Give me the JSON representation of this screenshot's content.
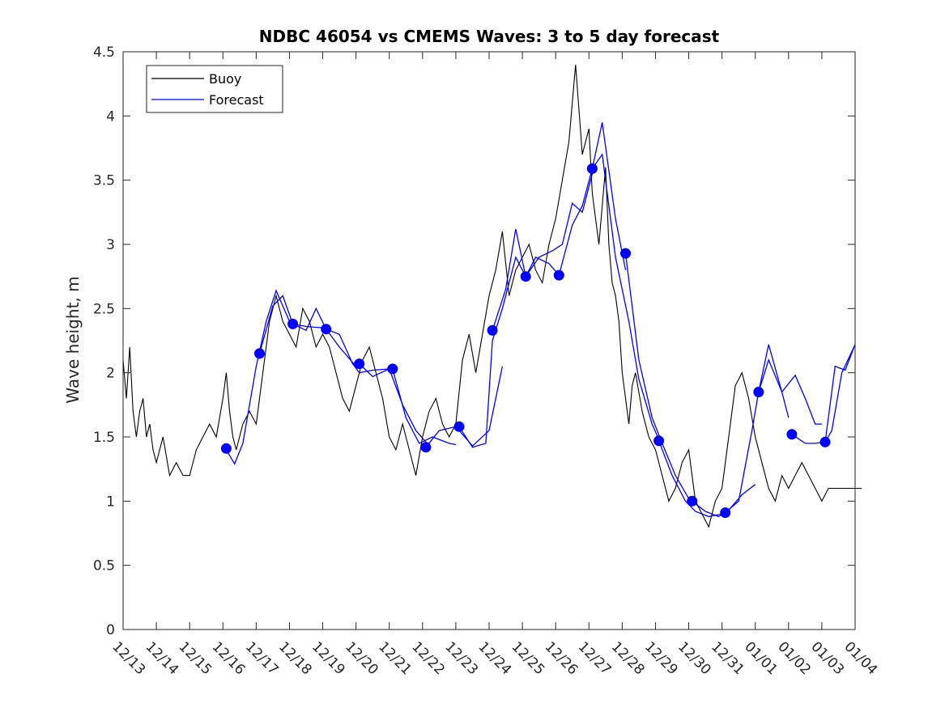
{
  "chart_data": {
    "type": "line",
    "title": "NDBC 46054 vs CMEMS Waves: 3 to 5 day forecast",
    "xlabel": "",
    "ylabel": "Wave height, m",
    "xlim": [
      "12/13",
      "01/04"
    ],
    "ylim": [
      0,
      4.5
    ],
    "x_tick_labels": [
      "12/13",
      "12/14",
      "12/15",
      "12/16",
      "12/17",
      "12/18",
      "12/19",
      "12/20",
      "12/21",
      "12/22",
      "12/23",
      "12/24",
      "12/25",
      "12/26",
      "12/27",
      "12/28",
      "12/29",
      "12/30",
      "12/31",
      "01/01",
      "01/02",
      "01/03",
      "01/04"
    ],
    "y_tick_labels": [
      "0",
      "0.5",
      "1",
      "1.5",
      "2",
      "2.5",
      "3",
      "3.5",
      "4",
      "4.5"
    ],
    "grid": false,
    "legend_position": "top-left",
    "series": [
      {
        "name": "Buoy",
        "color": "#000000",
        "style": "line",
        "x_days_from_1213": [
          0.0,
          0.1,
          0.2,
          0.3,
          0.4,
          0.5,
          0.6,
          0.7,
          0.8,
          0.9,
          1.0,
          1.2,
          1.4,
          1.6,
          1.8,
          2.0,
          2.2,
          2.4,
          2.6,
          2.8,
          3.0,
          3.1,
          3.2,
          3.3,
          3.4,
          3.5,
          3.6,
          3.8,
          4.0,
          4.2,
          4.4,
          4.6,
          4.8,
          5.0,
          5.2,
          5.4,
          5.6,
          5.8,
          6.0,
          6.2,
          6.4,
          6.6,
          6.8,
          7.0,
          7.2,
          7.4,
          7.6,
          7.8,
          8.0,
          8.2,
          8.4,
          8.6,
          8.8,
          9.0,
          9.2,
          9.4,
          9.6,
          9.8,
          10.0,
          10.2,
          10.4,
          10.6,
          10.8,
          11.0,
          11.2,
          11.4,
          11.6,
          11.8,
          12.0,
          12.2,
          12.4,
          12.6,
          12.8,
          13.0,
          13.2,
          13.4,
          13.6,
          13.8,
          14.0,
          14.1,
          14.2,
          14.3,
          14.4,
          14.5,
          14.6,
          14.7,
          14.8,
          14.9,
          15.0,
          15.1,
          15.2,
          15.3,
          15.4,
          15.6,
          15.8,
          16.0,
          16.2,
          16.4,
          16.6,
          16.8,
          17.0,
          17.2,
          17.4,
          17.6,
          17.8,
          18.0,
          18.2,
          18.4,
          18.6,
          18.8,
          19.0,
          19.2,
          19.4,
          19.6,
          19.8,
          20.0,
          20.2,
          20.4,
          20.6,
          20.8,
          21.0,
          21.2,
          21.4,
          21.6,
          21.8,
          22.0,
          22.2
        ],
        "values": [
          2.1,
          1.8,
          2.2,
          1.7,
          1.5,
          1.7,
          1.8,
          1.5,
          1.6,
          1.4,
          1.3,
          1.5,
          1.2,
          1.3,
          1.2,
          1.2,
          1.4,
          1.5,
          1.6,
          1.5,
          1.8,
          2.0,
          1.7,
          1.5,
          1.4,
          1.5,
          1.6,
          1.7,
          1.6,
          2.0,
          2.4,
          2.6,
          2.4,
          2.3,
          2.2,
          2.5,
          2.4,
          2.2,
          2.3,
          2.2,
          2.0,
          1.8,
          1.7,
          1.9,
          2.1,
          2.2,
          2.0,
          1.8,
          1.5,
          1.4,
          1.6,
          1.4,
          1.2,
          1.5,
          1.7,
          1.8,
          1.6,
          1.5,
          1.6,
          2.1,
          2.3,
          2.0,
          2.3,
          2.6,
          2.8,
          3.1,
          2.6,
          2.8,
          2.9,
          3.0,
          2.8,
          2.7,
          3.0,
          3.2,
          3.5,
          3.8,
          4.4,
          3.7,
          3.9,
          3.4,
          3.2,
          3.0,
          3.3,
          3.6,
          3.0,
          2.7,
          2.6,
          2.4,
          2.0,
          1.8,
          1.6,
          1.9,
          2.0,
          1.7,
          1.5,
          1.4,
          1.2,
          1.0,
          1.1,
          1.3,
          1.4,
          1.0,
          0.9,
          0.8,
          1.0,
          1.1,
          1.5,
          1.9,
          2.0,
          1.8,
          1.5,
          1.3,
          1.1,
          1.0,
          1.2,
          1.1,
          1.2,
          1.3,
          1.2,
          1.1,
          1.0,
          1.1,
          1.1,
          1.1,
          1.1,
          1.1,
          1.1
        ]
      },
      {
        "name": "Forecast",
        "color": "#0000ff",
        "style": "line+markers",
        "segments": [
          {
            "x": [
              3.1,
              3.35,
              3.6,
              4.0,
              4.3,
              4.6,
              5.0
            ],
            "y": [
              1.4,
              1.29,
              1.45,
              2.05,
              2.4,
              2.64,
              2.4
            ]
          },
          {
            "x": [
              4.1,
              4.5,
              4.8,
              5.1,
              5.5,
              6.0
            ],
            "y": [
              2.15,
              2.52,
              2.6,
              2.38,
              2.36,
              2.35
            ]
          },
          {
            "x": [
              5.1,
              5.5,
              5.8,
              6.1,
              6.5,
              7.0
            ],
            "y": [
              2.38,
              2.33,
              2.5,
              2.34,
              2.2,
              2.05
            ]
          },
          {
            "x": [
              6.1,
              6.5,
              6.9,
              7.1,
              7.5,
              8.0
            ],
            "y": [
              2.34,
              2.3,
              2.07,
              2.0,
              2.02,
              2.03
            ]
          },
          {
            "x": [
              7.1,
              7.5,
              8.0,
              8.4,
              8.8,
              9.2
            ],
            "y": [
              2.07,
              1.97,
              2.03,
              1.75,
              1.55,
              1.43
            ]
          },
          {
            "x": [
              8.1,
              8.5,
              8.9,
              9.3,
              9.8,
              10.0
            ],
            "y": [
              2.03,
              1.65,
              1.45,
              1.5,
              1.45,
              1.44
            ]
          },
          {
            "x": [
              9.1,
              9.5,
              10.0,
              10.5,
              11.0,
              11.4
            ],
            "y": [
              1.42,
              1.55,
              1.58,
              1.43,
              1.55,
              2.05
            ]
          },
          {
            "x": [
              10.1,
              10.5,
              10.9,
              11.1,
              11.4,
              11.8,
              12.1
            ],
            "y": [
              1.58,
              1.42,
              1.45,
              2.25,
              2.5,
              2.9,
              2.75
            ]
          },
          {
            "x": [
              11.1,
              11.5,
              11.8,
              12.1,
              12.4,
              12.8,
              13.1
            ],
            "y": [
              2.33,
              2.65,
              3.12,
              2.75,
              2.9,
              2.85,
              2.76
            ]
          },
          {
            "x": [
              12.1,
              12.5,
              12.9,
              13.2,
              13.5,
              13.8,
              14.1
            ],
            "y": [
              2.75,
              2.9,
              2.95,
              3.0,
              3.32,
              3.25,
              3.55
            ]
          },
          {
            "x": [
              13.1,
              13.5,
              13.8,
              14.1,
              14.4,
              14.8,
              15.1
            ],
            "y": [
              2.76,
              3.15,
              3.3,
              3.59,
              3.95,
              3.2,
              2.8
            ]
          },
          {
            "x": [
              14.1,
              14.4,
              14.8,
              15.2,
              15.5,
              15.9,
              16.1
            ],
            "y": [
              3.59,
              3.7,
              2.9,
              2.4,
              1.95,
              1.6,
              1.48
            ]
          },
          {
            "x": [
              15.1,
              15.5,
              15.9,
              16.2,
              16.6,
              17.0,
              17.1
            ],
            "y": [
              2.93,
              2.1,
              1.65,
              1.45,
              1.2,
              1.02,
              1.0
            ]
          },
          {
            "x": [
              16.1,
              16.5,
              16.9,
              17.2,
              17.6,
              18.0,
              18.1
            ],
            "y": [
              1.47,
              1.2,
              1.0,
              0.92,
              0.88,
              0.9,
              0.91
            ]
          },
          {
            "x": [
              17.1,
              17.5,
              17.9,
              18.2,
              18.6,
              19.0
            ],
            "y": [
              1.0,
              0.92,
              0.88,
              0.93,
              1.05,
              1.13
            ]
          },
          {
            "x": [
              18.1,
              18.5,
              18.9,
              19.1,
              19.4,
              19.8,
              20.0
            ],
            "y": [
              0.91,
              1.0,
              1.55,
              1.85,
              2.22,
              1.85,
              1.65
            ]
          },
          {
            "x": [
              19.1,
              19.4,
              19.8,
              20.2,
              20.5,
              20.8,
              21.0
            ],
            "y": [
              1.85,
              2.1,
              1.85,
              1.98,
              1.8,
              1.6,
              1.6
            ]
          },
          {
            "x": [
              20.1,
              20.5,
              20.8,
              21.1,
              21.4,
              21.7,
              22.0
            ],
            "y": [
              1.52,
              1.45,
              1.45,
              1.46,
              2.05,
              2.02,
              2.22
            ]
          },
          {
            "x": [
              21.1,
              21.3,
              21.6,
              22.0
            ],
            "y": [
              1.46,
              1.55,
              2.0,
              2.22
            ]
          }
        ],
        "markers_x": [
          3.1,
          4.1,
          5.1,
          6.1,
          7.1,
          8.1,
          9.1,
          10.1,
          11.1,
          12.1,
          13.1,
          14.1,
          15.1,
          16.1,
          17.1,
          18.1,
          19.1,
          20.1,
          21.1
        ],
        "markers_y": [
          1.41,
          2.15,
          2.38,
          2.34,
          2.07,
          2.03,
          1.42,
          1.58,
          2.33,
          2.75,
          2.76,
          3.59,
          2.93,
          1.47,
          1.0,
          0.91,
          1.85,
          1.52,
          1.46
        ]
      }
    ]
  }
}
